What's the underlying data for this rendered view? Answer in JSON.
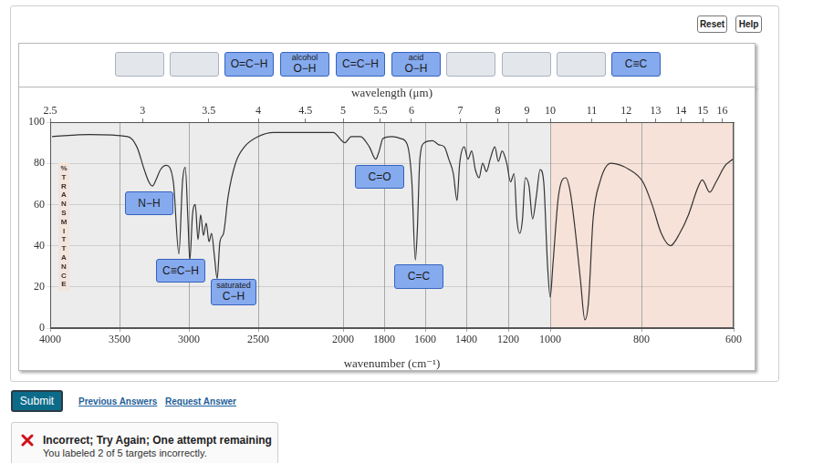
{
  "chart_data": {
    "type": "line",
    "xlabel": "wavenumber (cm⁻¹)",
    "x2label": "wavelength (μm)",
    "ylabel": "%TRANSMITTANCE",
    "color": "#333333",
    "grid": true,
    "xlim": [
      4000,
      600
    ],
    "xticks": [
      4000,
      3500,
      3000,
      2500,
      2000,
      1800,
      1600,
      1400,
      1200,
      1000,
      800,
      600
    ],
    "x2lim": [
      4000,
      600
    ],
    "x2ticks": [
      {
        "value": 4000,
        "label": "2.5"
      },
      {
        "value": 3333.33,
        "label": "3"
      },
      {
        "value": 2857.14,
        "label": "3.5"
      },
      {
        "value": 2500,
        "label": "4"
      },
      {
        "value": 2222.22,
        "label": "4.5"
      },
      {
        "value": 2000,
        "label": "5"
      },
      {
        "value": 1818.18,
        "label": "5.5"
      },
      {
        "value": 1666.67,
        "label": "6"
      },
      {
        "value": 1428.57,
        "label": "7"
      },
      {
        "value": 1250,
        "label": "8"
      },
      {
        "value": 1111.11,
        "label": "9"
      },
      {
        "value": 1000,
        "label": "10"
      },
      {
        "value": 909.09,
        "label": "11"
      },
      {
        "value": 833.33,
        "label": "12"
      },
      {
        "value": 769.23,
        "label": "13"
      },
      {
        "value": 714.29,
        "label": "14"
      },
      {
        "value": 666.67,
        "label": "15"
      },
      {
        "value": 625,
        "label": "16"
      }
    ],
    "ylim": [
      0,
      100
    ],
    "yticks": [
      0,
      20,
      40,
      60,
      80,
      100
    ],
    "x": [
      3987,
      3717,
      3441,
      3375,
      3322,
      3289,
      3263,
      3237,
      3204,
      3164,
      3112,
      3072,
      3046,
      3026,
      3007,
      2993,
      2974,
      2954,
      2934,
      2915,
      2895,
      2875,
      2855,
      2836,
      2816,
      2796,
      2776,
      2750,
      2717,
      2664,
      2599,
      2500,
      2409,
      2059,
      1991,
      1960,
      1916,
      1872,
      1841,
      1824,
      1806,
      1762,
      1718,
      1687,
      1665,
      1648,
      1639,
      1626,
      1604,
      1564,
      1533,
      1507,
      1485,
      1463,
      1445,
      1432,
      1410,
      1392,
      1374,
      1357,
      1339,
      1322,
      1304,
      1286,
      1264,
      1247,
      1229,
      1207,
      1189,
      1172,
      1159,
      1145,
      1132,
      1119,
      1101,
      1084,
      1066,
      1048,
      1031,
      1013,
      1000,
      994,
      982,
      966,
      956,
      946,
      934,
      924,
      916,
      906,
      891,
      867,
      827,
      797,
      777,
      757,
      737,
      717,
      698,
      678,
      668,
      652,
      638,
      618,
      602
    ],
    "values": [
      93,
      94,
      93,
      88,
      77,
      71,
      69,
      72,
      77,
      79,
      71,
      36,
      71,
      78,
      53,
      33,
      55,
      60,
      43,
      55,
      45,
      51,
      42,
      46,
      35,
      24,
      42,
      46,
      64,
      80,
      88,
      93,
      95,
      95,
      90,
      93,
      93,
      88,
      82,
      86,
      92,
      93,
      92,
      89,
      71,
      33,
      46,
      82,
      90,
      91,
      89,
      88,
      82,
      75,
      62,
      80,
      88,
      82,
      86,
      77,
      73,
      80,
      76,
      82,
      88,
      81,
      86,
      80,
      71,
      75,
      53,
      46,
      53,
      73,
      69,
      53,
      64,
      77,
      71,
      31,
      15,
      31,
      64,
      73,
      66,
      49,
      24,
      4,
      13,
      53,
      71,
      80,
      77,
      71,
      60,
      46,
      40,
      46,
      55,
      68,
      72,
      66,
      71,
      79,
      82
    ],
    "annotations": [
      [
        "N−H"
      ],
      [
        "C≡C−H"
      ],
      [
        "saturated",
        "C−H"
      ],
      [
        "C=O"
      ],
      [
        "C=C"
      ]
    ]
  },
  "page": {
    "buttons": [
      "Reset",
      "Help"
    ],
    "label_bank": [
      null,
      null,
      [
        "O=C−H"
      ],
      [
        "alcohol",
        "O−H"
      ],
      [
        "C=C−H"
      ],
      [
        "acid",
        "O−H"
      ],
      null,
      null,
      null,
      [
        "C≡C"
      ]
    ],
    "submit": "Submit",
    "links": [
      "Previous Answers",
      "Request Answer"
    ],
    "feedback": {
      "title": "Incorrect; Try Again; One attempt remaining",
      "detail": "You labeled 2 of 5 targets incorrectly."
    }
  }
}
